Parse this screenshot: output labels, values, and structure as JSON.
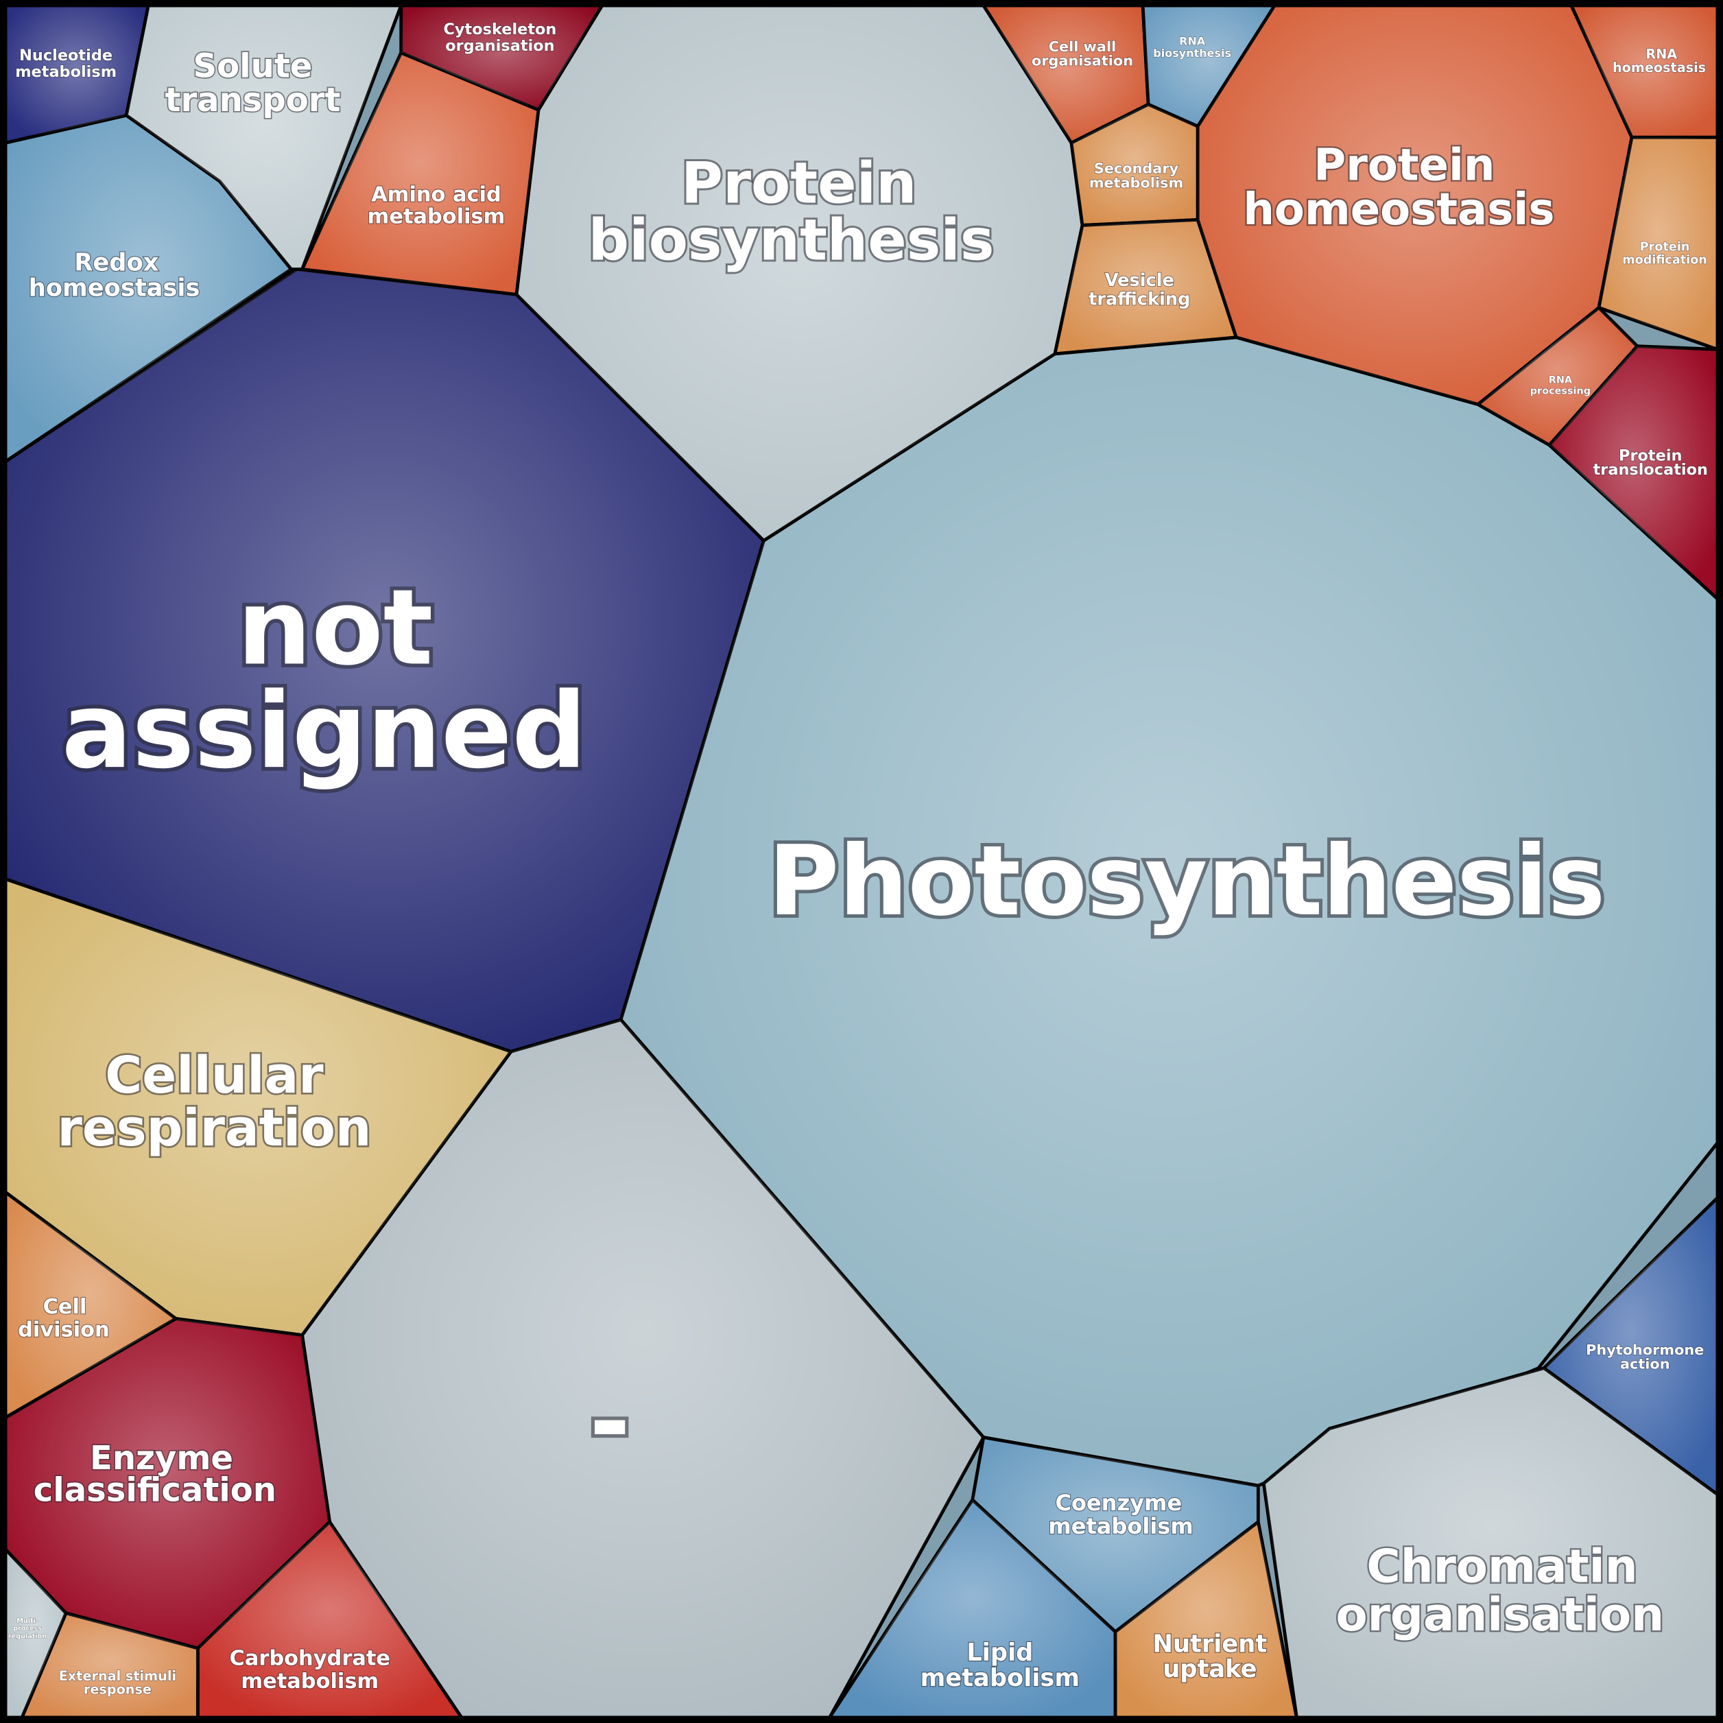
{
  "cells": [
    {
      "lines": [
        "not",
        "assigned"
      ]
    },
    {
      "lines": [
        "Photosynthesis"
      ]
    },
    {
      "lines": [
        "-"
      ]
    },
    {
      "lines": [
        "Protein",
        "biosynthesis"
      ]
    },
    {
      "lines": [
        "Cellular",
        "respiration"
      ]
    },
    {
      "lines": [
        "Enzyme",
        "classification"
      ]
    },
    {
      "lines": [
        "Carbohydrate",
        "metabolism"
      ]
    },
    {
      "lines": [
        "External stimuli",
        "response"
      ]
    },
    {
      "lines": [
        "Multi-",
        "process",
        "regulation"
      ]
    },
    {
      "lines": [
        "Cell",
        "division"
      ]
    },
    {
      "lines": [
        "Redox",
        "homeostasis"
      ]
    },
    {
      "lines": [
        "Nucleotide",
        "metabolism"
      ]
    },
    {
      "lines": [
        "Solute",
        "transport"
      ]
    },
    {
      "lines": [
        "Amino acid",
        "metabolism"
      ]
    },
    {
      "lines": [
        "Cytoskeleton",
        "organisation"
      ]
    },
    {
      "lines": [
        "Cell wall",
        "organisation"
      ]
    },
    {
      "lines": [
        "RNA",
        "biosynthesis"
      ]
    },
    {
      "lines": [
        "Secondary",
        "metabolism"
      ]
    },
    {
      "lines": [
        "Vesicle",
        "trafficking"
      ]
    },
    {
      "lines": [
        "Protein",
        "homeostasis"
      ]
    },
    {
      "lines": [
        "RNA",
        "homeostasis"
      ]
    },
    {
      "lines": [
        "Protein",
        "modification"
      ]
    },
    {
      "lines": [
        "RNA",
        "processing"
      ]
    },
    {
      "lines": [
        "Protein",
        "translocation"
      ]
    },
    {
      "lines": [
        "Phytohormone",
        "action"
      ]
    },
    {
      "lines": [
        "Chromatin",
        "organisation"
      ]
    },
    {
      "lines": [
        "Coenzyme",
        "metabolism"
      ]
    },
    {
      "lines": [
        "Lipid",
        "metabolism"
      ]
    },
    {
      "lines": [
        "Nutrient",
        "uptake"
      ]
    }
  ]
}
